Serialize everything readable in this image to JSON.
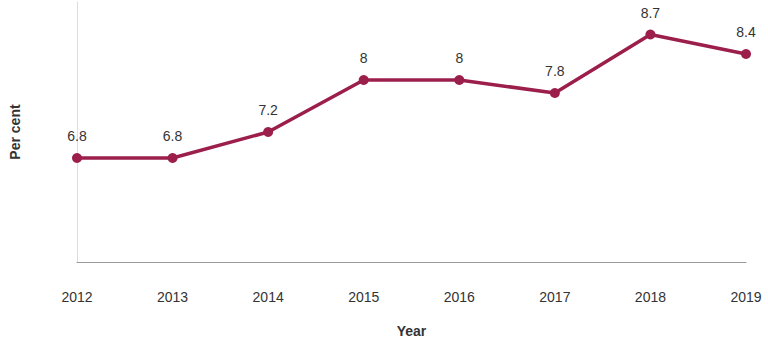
{
  "chart_data": {
    "type": "line",
    "x_label": "Year",
    "y_label": "Per cent",
    "categories": [
      "2012",
      "2013",
      "2014",
      "2015",
      "2016",
      "2017",
      "2018",
      "2019"
    ],
    "values": [
      6.8,
      6.8,
      7.2,
      8,
      8,
      7.8,
      8.7,
      8.4
    ],
    "color": "#9c1f4b",
    "marker": "circle",
    "ylim": [
      5.2,
      9.2
    ],
    "yticks": [],
    "grid": false,
    "tick_labels": "x",
    "data_labels": true
  }
}
